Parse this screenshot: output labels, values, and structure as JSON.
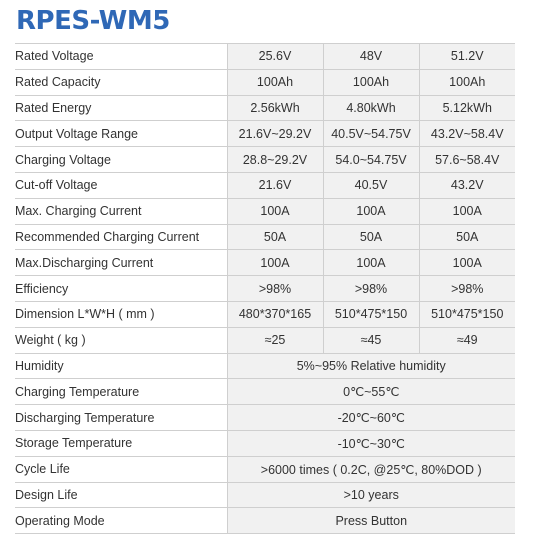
{
  "title": "RPES-WM5",
  "rows": [
    {
      "label": "Rated Voltage",
      "values": [
        "25.6V",
        "48V",
        "51.2V"
      ]
    },
    {
      "label": "Rated Capacity",
      "values": [
        "100Ah",
        "100Ah",
        "100Ah"
      ]
    },
    {
      "label": "Rated Energy",
      "values": [
        "2.56kWh",
        "4.80kWh",
        "5.12kWh"
      ]
    },
    {
      "label": "Output Voltage Range",
      "values": [
        "21.6V~29.2V",
        "40.5V~54.75V",
        "43.2V~58.4V"
      ]
    },
    {
      "label": "Charging Voltage",
      "values": [
        "28.8~29.2V",
        "54.0~54.75V",
        "57.6~58.4V"
      ]
    },
    {
      "label": "Cut-off Voltage",
      "values": [
        "21.6V",
        "40.5V",
        "43.2V"
      ]
    },
    {
      "label": "Max. Charging Current",
      "values": [
        "100A",
        "100A",
        "100A"
      ]
    },
    {
      "label": "Recommended Charging Current",
      "values": [
        "50A",
        "50A",
        "50A"
      ]
    },
    {
      "label": "Max.Discharging Current",
      "values": [
        "100A",
        "100A",
        "100A"
      ]
    },
    {
      "label": "Efficiency",
      "values": [
        ">98%",
        ">98%",
        ">98%"
      ]
    },
    {
      "label": "Dimension  L*W*H ( mm )",
      "values": [
        "480*370*165",
        "510*475*150",
        "510*475*150"
      ]
    },
    {
      "label": "Weight ( kg )",
      "values": [
        "≈25",
        "≈45",
        "≈49"
      ]
    },
    {
      "label": "Humidity",
      "value": "5%~95% Relative humidity"
    },
    {
      "label": "Charging Temperature",
      "value": "0℃~55℃"
    },
    {
      "label": "Discharging Temperature",
      "value": "-20℃~60℃"
    },
    {
      "label": "Storage Temperature",
      "value": "-10℃~30℃"
    },
    {
      "label": "Cycle Life",
      "value": ">6000 times ( 0.2C, @25℃, 80%DOD )"
    },
    {
      "label": "Design Life",
      "value": ">10 years"
    },
    {
      "label": "Operating Mode",
      "value": "Press Button"
    }
  ]
}
